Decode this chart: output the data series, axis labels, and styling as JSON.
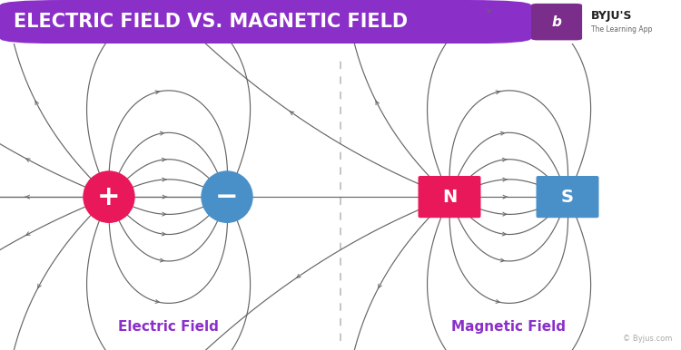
{
  "title": "ELECTRIC FIELD VS. MAGNETIC FIELD",
  "title_bg_color": "#8B2FC9",
  "title_text_color": "#ffffff",
  "bg_color": "#ffffff",
  "left_label": "Electric Field",
  "right_label": "Magnetic Field",
  "label_color": "#8B2FC9",
  "positive_color": "#E8185A",
  "negative_color": "#4A90C8",
  "north_color": "#E8185A",
  "south_color": "#4A90C8",
  "field_line_color": "#666666",
  "divider_color": "#aaaaaa",
  "byju_purple": "#7B2D8B",
  "byju_text": "BYJU'S",
  "byju_subtext": "The Learning App",
  "copyright_text": "© Byjus.com"
}
